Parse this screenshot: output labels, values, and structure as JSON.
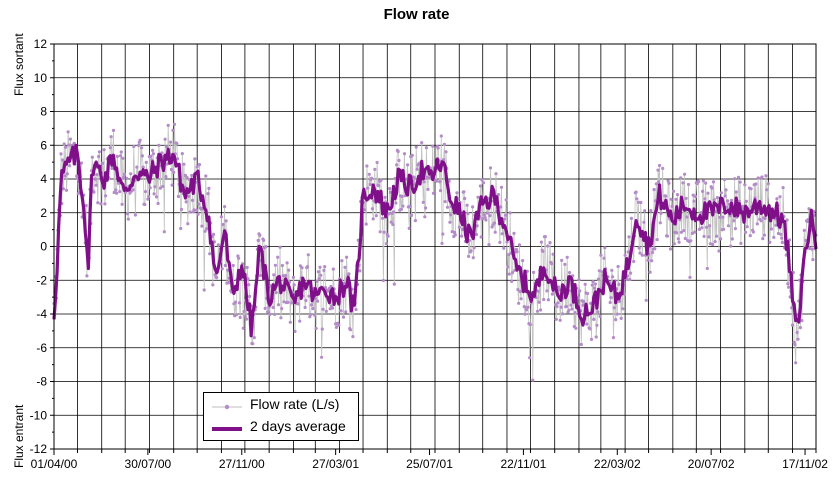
{
  "chart_data": {
    "type": "line",
    "title": "Flow rate",
    "ylabel_top": "Flux sortant",
    "ylabel_bottom": "Flux entrant",
    "xlabel": "",
    "x_tick_labels": [
      "01/04/00",
      "30/07/00",
      "27/11/00",
      "27/03/01",
      "25/07/01",
      "22/11/01",
      "22/03/02",
      "20/07/02",
      "17/11/02"
    ],
    "x_range": [
      "01/04/00",
      "01/12/02"
    ],
    "ylim": [
      -12,
      12
    ],
    "y_ticks": [
      12,
      10,
      8,
      6,
      4,
      2,
      0,
      -2,
      -4,
      -6,
      -8,
      -10,
      -12
    ],
    "grid": true,
    "legend_position": "bottom-left",
    "series": [
      {
        "name": "Flow rate (L/s)",
        "color": "#b48cc8",
        "style": "thin grey line with purple dot markers",
        "note": "daily measurements; approximate envelope follows the 2 days average with ±2 L/s scatter"
      },
      {
        "name": "2 days average",
        "color": "#80108a",
        "style": "thick line",
        "points": [
          {
            "x": "01/04/00",
            "y": -4
          },
          {
            "x": "05/04/00",
            "y": -1
          },
          {
            "x": "10/04/00",
            "y": 4
          },
          {
            "x": "20/04/00",
            "y": 5
          },
          {
            "x": "01/05/00",
            "y": 5.5
          },
          {
            "x": "10/05/00",
            "y": 2
          },
          {
            "x": "15/05/00",
            "y": -1
          },
          {
            "x": "20/05/00",
            "y": 5
          },
          {
            "x": "05/06/00",
            "y": 4
          },
          {
            "x": "15/06/00",
            "y": 5.5
          },
          {
            "x": "30/06/00",
            "y": 3
          },
          {
            "x": "15/07/00",
            "y": 4.5
          },
          {
            "x": "30/07/00",
            "y": 4
          },
          {
            "x": "15/08/00",
            "y": 5
          },
          {
            "x": "01/09/00",
            "y": 5.5
          },
          {
            "x": "15/09/00",
            "y": 3
          },
          {
            "x": "01/10/00",
            "y": 4
          },
          {
            "x": "15/10/00",
            "y": 2
          },
          {
            "x": "25/10/00",
            "y": -2
          },
          {
            "x": "05/11/00",
            "y": 1
          },
          {
            "x": "15/11/00",
            "y": -3
          },
          {
            "x": "27/11/00",
            "y": -1
          },
          {
            "x": "10/12/00",
            "y": -5
          },
          {
            "x": "20/12/00",
            "y": 0
          },
          {
            "x": "01/01/01",
            "y": -3
          },
          {
            "x": "15/01/01",
            "y": -2
          },
          {
            "x": "01/02/01",
            "y": -3.5
          },
          {
            "x": "15/02/01",
            "y": -2
          },
          {
            "x": "01/03/01",
            "y": -3
          },
          {
            "x": "15/03/01",
            "y": -2.5
          },
          {
            "x": "27/03/01",
            "y": -3
          },
          {
            "x": "10/04/01",
            "y": -2
          },
          {
            "x": "20/04/01",
            "y": -4
          },
          {
            "x": "01/05/01",
            "y": 3
          },
          {
            "x": "15/05/01",
            "y": 3.5
          },
          {
            "x": "01/06/01",
            "y": 2
          },
          {
            "x": "15/06/01",
            "y": 4
          },
          {
            "x": "01/07/01",
            "y": 3.5
          },
          {
            "x": "15/07/01",
            "y": 4.5
          },
          {
            "x": "25/07/01",
            "y": 4
          },
          {
            "x": "10/08/01",
            "y": 5
          },
          {
            "x": "20/08/01",
            "y": 3
          },
          {
            "x": "01/09/01",
            "y": 2
          },
          {
            "x": "15/09/01",
            "y": 0.5
          },
          {
            "x": "01/10/01",
            "y": 2.5
          },
          {
            "x": "15/10/01",
            "y": 3
          },
          {
            "x": "01/11/01",
            "y": 1
          },
          {
            "x": "10/11/01",
            "y": -1
          },
          {
            "x": "22/11/01",
            "y": -2
          },
          {
            "x": "05/12/01",
            "y": -3
          },
          {
            "x": "20/12/01",
            "y": -1
          },
          {
            "x": "05/01/02",
            "y": -3
          },
          {
            "x": "20/01/02",
            "y": -2
          },
          {
            "x": "05/02/02",
            "y": -4
          },
          {
            "x": "20/02/02",
            "y": -3.5
          },
          {
            "x": "05/03/02",
            "y": -2
          },
          {
            "x": "22/03/02",
            "y": -3
          },
          {
            "x": "05/04/02",
            "y": -1
          },
          {
            "x": "15/04/02",
            "y": 2
          },
          {
            "x": "01/05/02",
            "y": 0
          },
          {
            "x": "15/05/02",
            "y": 3
          },
          {
            "x": "01/06/02",
            "y": 1.5
          },
          {
            "x": "15/06/02",
            "y": 2.5
          },
          {
            "x": "01/07/02",
            "y": 2
          },
          {
            "x": "20/07/02",
            "y": 2
          },
          {
            "x": "10/08/02",
            "y": 2.5
          },
          {
            "x": "01/09/02",
            "y": 2
          },
          {
            "x": "20/09/02",
            "y": 2.5
          },
          {
            "x": "10/10/02",
            "y": 2
          },
          {
            "x": "20/10/02",
            "y": 1.5
          },
          {
            "x": "28/10/02",
            "y": -1
          },
          {
            "x": "05/11/02",
            "y": -5
          },
          {
            "x": "12/11/02",
            "y": -3
          },
          {
            "x": "17/11/02",
            "y": 0
          },
          {
            "x": "25/11/02",
            "y": 1.5
          },
          {
            "x": "01/12/02",
            "y": 0.5
          }
        ]
      }
    ]
  }
}
